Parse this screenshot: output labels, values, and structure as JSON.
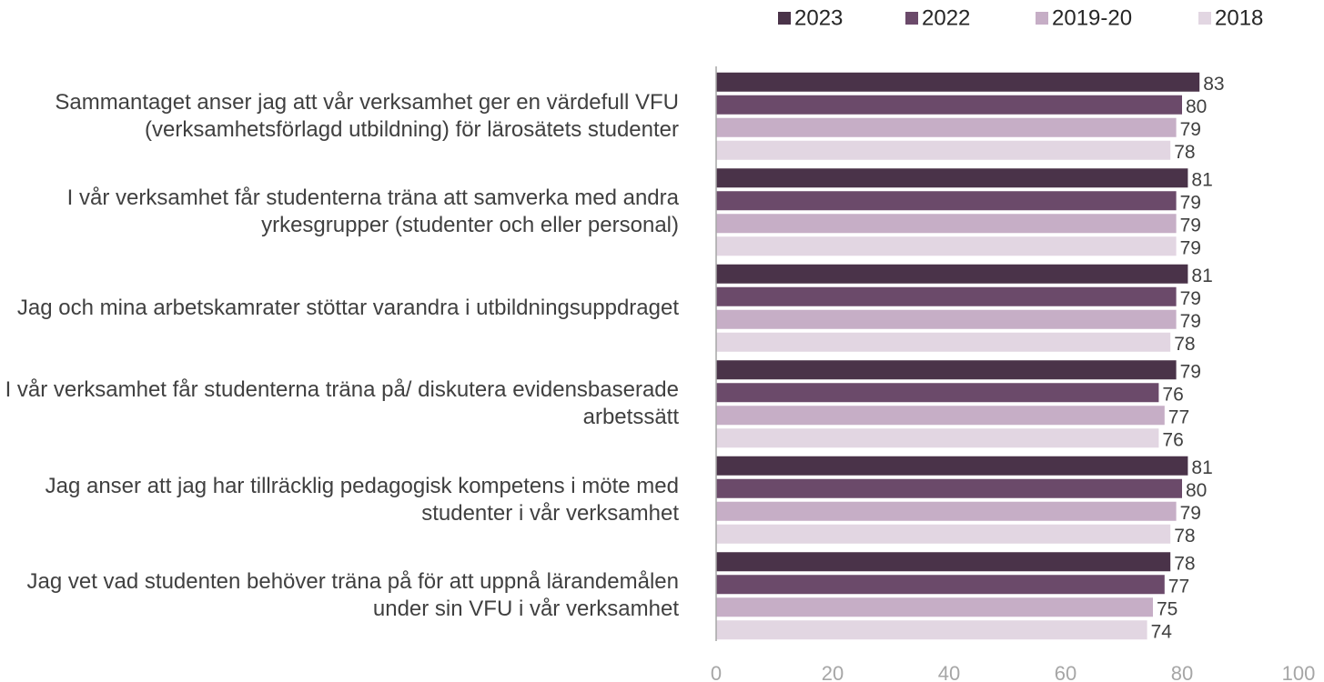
{
  "chart_data": {
    "type": "bar",
    "orientation": "horizontal",
    "categories": [
      "Sammantaget anser jag att vår verksamhet ger en värdefull VFU (verksamhetsförlagd utbildning) för lärosätets studenter",
      "I vår verksamhet får studenterna träna att samverka med andra yrkesgrupper (studenter och eller personal)",
      "Jag och mina arbetskamrater stöttar varandra i utbildningsuppdraget",
      "I vår verksamhet får studenterna träna på/ diskutera evidensbaserade arbetssätt",
      "Jag anser att jag har tillräcklig pedagogisk kompetens i möte med studenter i vår verksamhet",
      "Jag vet vad studenten behöver träna på för att uppnå lärandemålen under sin VFU i vår verksamhet"
    ],
    "series": [
      {
        "name": "2023",
        "color": "#4a3349",
        "values": [
          83,
          81,
          81,
          79,
          81,
          78
        ]
      },
      {
        "name": "2022",
        "color": "#6b4a6a",
        "values": [
          80,
          79,
          79,
          76,
          80,
          77
        ]
      },
      {
        "name": "2019-20",
        "color": "#c6aec6",
        "values": [
          79,
          79,
          79,
          77,
          79,
          75
        ]
      },
      {
        "name": "2018",
        "color": "#e2d6e2",
        "values": [
          78,
          79,
          78,
          76,
          78,
          74
        ]
      }
    ],
    "xlim": [
      0,
      100
    ],
    "xticks": [
      0,
      20,
      40,
      60,
      80,
      100
    ],
    "legend": "top-right"
  }
}
